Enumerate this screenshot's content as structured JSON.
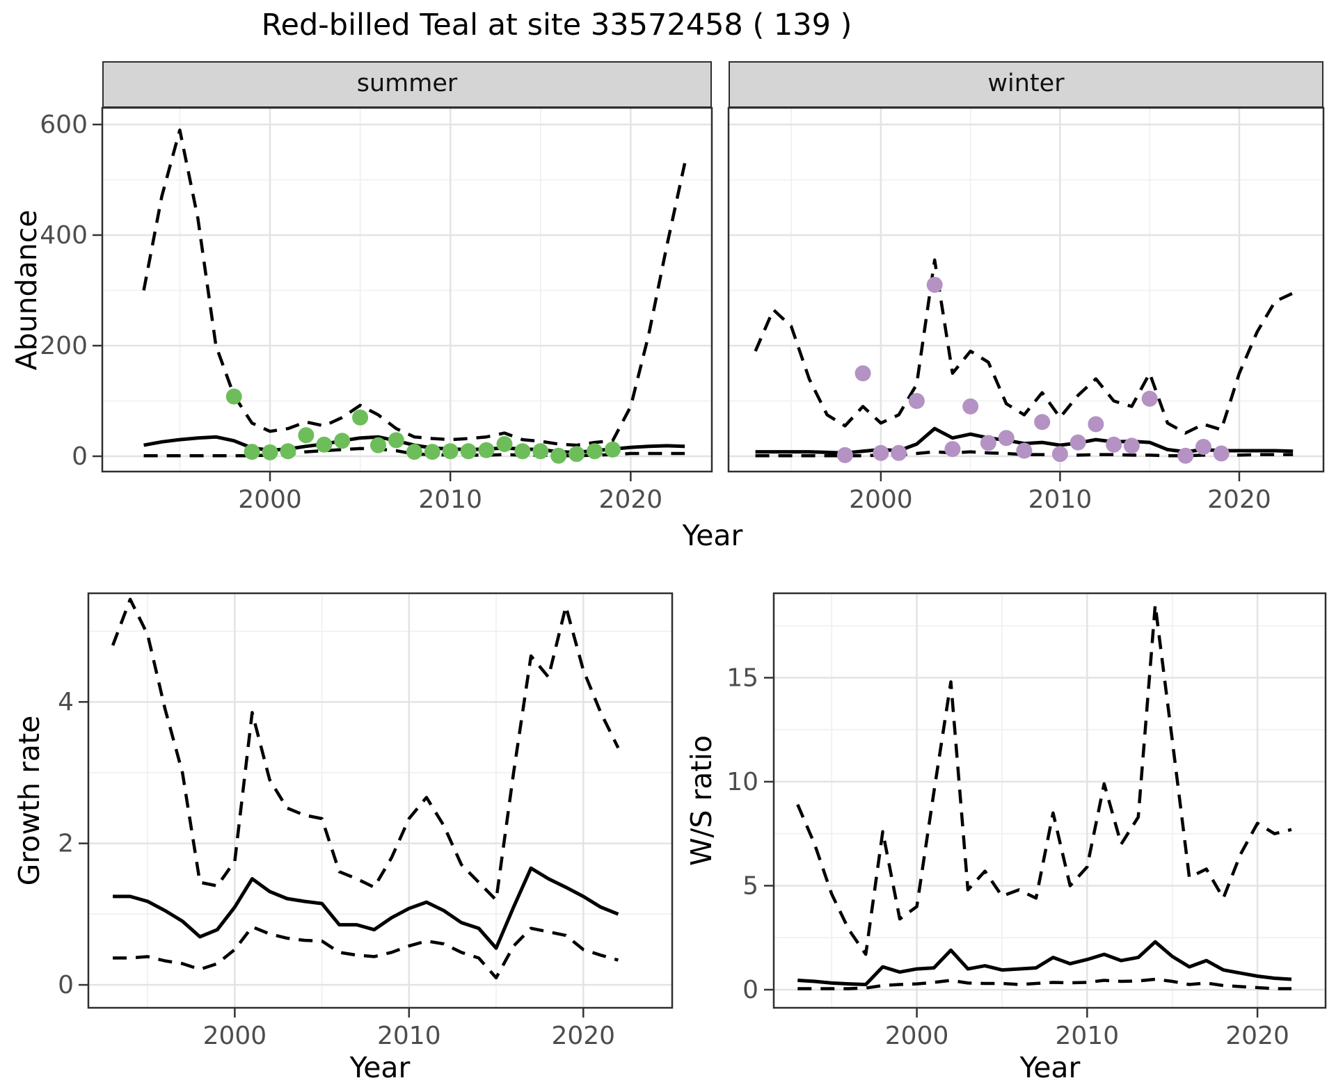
{
  "title": "Red-billed Teal at site 33572458 ( 139 )",
  "axis_titles": {
    "abundance": "Abundance",
    "year_top": "Year",
    "growth_rate": "Growth rate",
    "year_bottom_left": "Year",
    "ws_ratio": "W/S ratio",
    "year_bottom_right": "Year"
  },
  "colors": {
    "summer_point": "#6DBE5A",
    "winter_point": "#B492C4",
    "line": "#000000",
    "strip_bg": "#D5D5D5",
    "panel_border": "#2E2E2E",
    "grid_major": "#E3E3E3",
    "grid_minor": "#EFEFEF",
    "tick_text": "#4D4D4D",
    "tick_mark": "#333333"
  },
  "chart_data": [
    {
      "id": "abundance-summer",
      "type": "line",
      "facet_label": "summer",
      "ylabel": "Abundance",
      "xlabel": "Year",
      "xlim": [
        1990.7,
        2024.5
      ],
      "ylim": [
        -27.7,
        630.2
      ],
      "x_ticks": [
        2000,
        2010,
        2020
      ],
      "x_minor": [
        1995,
        2005,
        2015
      ],
      "y_ticks": [
        0,
        200,
        400,
        600
      ],
      "y_minor": [
        100,
        300,
        500
      ],
      "grid": true,
      "x": [
        1993,
        1994,
        1995,
        1996,
        1997,
        1998,
        1999,
        2000,
        2001,
        2002,
        2003,
        2004,
        2005,
        2006,
        2007,
        2008,
        2009,
        2010,
        2011,
        2012,
        2013,
        2014,
        2015,
        2016,
        2017,
        2018,
        2019,
        2020,
        2021,
        2022,
        2023
      ],
      "series": [
        {
          "name": "upper-ci",
          "style": "dashed",
          "values": [
            300,
            470,
            590,
            430,
            200,
            110,
            60,
            45,
            50,
            62,
            55,
            70,
            92,
            75,
            50,
            35,
            32,
            30,
            32,
            35,
            42,
            30,
            27,
            22,
            20,
            25,
            28,
            90,
            220,
            380,
            530
          ]
        },
        {
          "name": "model-fit",
          "style": "solid",
          "values": [
            20,
            26,
            30,
            33,
            35,
            28,
            15,
            11,
            13,
            18,
            22,
            28,
            33,
            35,
            28,
            20,
            15,
            13,
            12,
            13,
            15,
            13,
            12,
            8,
            7,
            10,
            13,
            16,
            18,
            19,
            18
          ]
        },
        {
          "name": "lower-ci",
          "style": "dashed",
          "values": [
            1,
            1,
            1,
            1,
            1,
            1,
            1,
            2,
            3,
            8,
            10,
            12,
            14,
            13,
            10,
            4,
            3,
            2,
            2,
            2,
            3,
            2,
            2,
            1,
            1,
            2,
            3,
            5,
            5,
            5,
            5
          ]
        }
      ],
      "points": {
        "name": "observed-counts-summer",
        "color_key": "summer_point",
        "x": [
          1998,
          1999,
          2000,
          2001,
          2002,
          2003,
          2004,
          2005,
          2006,
          2007,
          2008,
          2009,
          2010,
          2011,
          2012,
          2013,
          2014,
          2015,
          2016,
          2017,
          2018,
          2019
        ],
        "y": [
          108,
          8,
          7,
          9,
          38,
          21,
          28,
          70,
          20,
          29,
          8,
          8,
          9,
          9,
          11,
          22,
          9,
          9,
          1,
          4,
          9,
          12
        ]
      }
    },
    {
      "id": "abundance-winter",
      "type": "line",
      "facet_label": "winter",
      "ylabel": "Abundance",
      "xlabel": "Year",
      "xlim": [
        1991.5,
        2024.7
      ],
      "ylim": [
        -27.7,
        630.2
      ],
      "x_ticks": [
        2000,
        2010,
        2020
      ],
      "x_minor": [
        1995,
        2005,
        2015
      ],
      "y_ticks": [
        0,
        200,
        400,
        600
      ],
      "y_minor": [
        100,
        300,
        500
      ],
      "grid": true,
      "x": [
        1993,
        1994,
        1995,
        1996,
        1997,
        1998,
        1999,
        2000,
        2001,
        2002,
        2003,
        2004,
        2005,
        2006,
        2007,
        2008,
        2009,
        2010,
        2011,
        2012,
        2013,
        2014,
        2015,
        2016,
        2017,
        2018,
        2019,
        2020,
        2021,
        2022,
        2023
      ],
      "series": [
        {
          "name": "upper-ci",
          "style": "dashed",
          "values": [
            190,
            265,
            235,
            140,
            75,
            55,
            90,
            60,
            75,
            130,
            355,
            150,
            190,
            170,
            95,
            75,
            115,
            70,
            110,
            140,
            100,
            90,
            150,
            60,
            42,
            58,
            48,
            150,
            225,
            280,
            295
          ]
        },
        {
          "name": "model-fit",
          "style": "solid",
          "values": [
            8,
            8,
            8,
            8,
            7,
            6,
            9,
            12,
            10,
            22,
            50,
            33,
            40,
            33,
            29,
            23,
            25,
            20,
            24,
            30,
            26,
            27,
            25,
            12,
            8,
            12,
            10,
            10,
            10,
            10,
            9
          ]
        },
        {
          "name": "lower-ci",
          "style": "dashed",
          "values": [
            1,
            1,
            1,
            1,
            1,
            1,
            1,
            2,
            2,
            5,
            8,
            6,
            8,
            6,
            5,
            3,
            3,
            2,
            2,
            3,
            3,
            2,
            2,
            1,
            1,
            2,
            2,
            2,
            3,
            3,
            3
          ]
        }
      ],
      "points": {
        "name": "observed-counts-winter",
        "color_key": "winter_point",
        "x": [
          1998,
          1999,
          2000,
          2001,
          2002,
          2003,
          2004,
          2005,
          2006,
          2007,
          2008,
          2009,
          2010,
          2011,
          2012,
          2013,
          2014,
          2015,
          2017,
          2018,
          2019
        ],
        "y": [
          2,
          150,
          6,
          6,
          100,
          310,
          13,
          90,
          24,
          33,
          10,
          62,
          4,
          25,
          58,
          21,
          19,
          104,
          1,
          17,
          5
        ]
      }
    },
    {
      "id": "growth-rate",
      "type": "line",
      "facet_label": null,
      "ylabel": "Growth rate",
      "xlabel": "Year",
      "xlim": [
        1991.6,
        2025.1
      ],
      "ylim": [
        -0.324,
        5.536
      ],
      "x_ticks": [
        2000,
        2010,
        2020
      ],
      "x_minor": [
        1995,
        2005,
        2015
      ],
      "y_ticks": [
        0,
        2,
        4
      ],
      "y_minor": [
        1,
        3,
        5
      ],
      "grid": true,
      "x": [
        1993,
        1994,
        1995,
        1996,
        1997,
        1998,
        1999,
        2000,
        2001,
        2002,
        2003,
        2004,
        2005,
        2006,
        2007,
        2008,
        2009,
        2010,
        2011,
        2012,
        2013,
        2014,
        2015,
        2016,
        2017,
        2018,
        2019,
        2020,
        2021,
        2022
      ],
      "series": [
        {
          "name": "upper-ci",
          "style": "dashed",
          "values": [
            4.8,
            5.45,
            4.95,
            3.9,
            3.0,
            1.45,
            1.4,
            1.75,
            3.85,
            2.9,
            2.5,
            2.4,
            2.35,
            1.6,
            1.5,
            1.38,
            1.8,
            2.35,
            2.65,
            2.25,
            1.7,
            1.45,
            1.2,
            3.0,
            4.65,
            4.35,
            5.35,
            4.45,
            3.85,
            3.35
          ]
        },
        {
          "name": "model-fit",
          "style": "solid",
          "values": [
            1.25,
            1.25,
            1.18,
            1.05,
            0.9,
            0.68,
            0.78,
            1.1,
            1.5,
            1.32,
            1.22,
            1.18,
            1.15,
            0.85,
            0.85,
            0.78,
            0.95,
            1.08,
            1.17,
            1.05,
            0.88,
            0.8,
            0.52,
            1.1,
            1.65,
            1.5,
            1.38,
            1.25,
            1.1,
            1.0
          ]
        },
        {
          "name": "lower-ci",
          "style": "dashed",
          "values": [
            0.38,
            0.38,
            0.4,
            0.34,
            0.3,
            0.22,
            0.3,
            0.5,
            0.82,
            0.72,
            0.66,
            0.63,
            0.62,
            0.46,
            0.42,
            0.4,
            0.46,
            0.55,
            0.62,
            0.58,
            0.46,
            0.38,
            0.1,
            0.55,
            0.8,
            0.75,
            0.7,
            0.5,
            0.42,
            0.35
          ]
        }
      ],
      "points": null
    },
    {
      "id": "ws-ratio",
      "type": "line",
      "facet_label": null,
      "ylabel": "W/S ratio",
      "xlabel": "Year",
      "xlim": [
        1991.6,
        2024.0
      ],
      "ylim": [
        -0.87,
        19.06
      ],
      "x_ticks": [
        2000,
        2010,
        2020
      ],
      "x_minor": [
        1995,
        2005,
        2015
      ],
      "y_ticks": [
        0,
        5,
        10,
        15
      ],
      "y_minor": [
        2.5,
        7.5,
        12.5,
        17.5
      ],
      "grid": true,
      "x": [
        1993,
        1994,
        1995,
        1996,
        1997,
        1998,
        1999,
        2000,
        2001,
        2002,
        2003,
        2004,
        2005,
        2006,
        2007,
        2008,
        2009,
        2010,
        2011,
        2012,
        2013,
        2014,
        2015,
        2016,
        2017,
        2018,
        2019,
        2020,
        2021,
        2022
      ],
      "series": [
        {
          "name": "upper-ci",
          "style": "dashed",
          "values": [
            8.9,
            7.0,
            4.6,
            2.9,
            1.7,
            7.6,
            3.4,
            4.0,
            9.5,
            14.8,
            4.8,
            5.7,
            4.5,
            4.8,
            4.4,
            8.5,
            5.0,
            5.9,
            9.9,
            7.0,
            8.3,
            18.5,
            12.0,
            5.4,
            5.8,
            4.4,
            6.5,
            8.0,
            7.5,
            7.7
          ]
        },
        {
          "name": "model-fit",
          "style": "solid",
          "values": [
            0.45,
            0.4,
            0.32,
            0.28,
            0.25,
            1.1,
            0.85,
            1.0,
            1.05,
            1.9,
            1.0,
            1.15,
            0.95,
            1.0,
            1.05,
            1.55,
            1.25,
            1.45,
            1.7,
            1.4,
            1.55,
            2.3,
            1.6,
            1.1,
            1.4,
            0.95,
            0.8,
            0.65,
            0.55,
            0.5
          ]
        },
        {
          "name": "lower-ci",
          "style": "dashed",
          "values": [
            0.05,
            0.05,
            0.05,
            0.05,
            0.08,
            0.2,
            0.25,
            0.28,
            0.35,
            0.45,
            0.32,
            0.3,
            0.3,
            0.25,
            0.3,
            0.35,
            0.33,
            0.35,
            0.45,
            0.4,
            0.42,
            0.5,
            0.4,
            0.25,
            0.32,
            0.2,
            0.15,
            0.1,
            0.05,
            0.05
          ]
        }
      ],
      "points": null
    }
  ]
}
